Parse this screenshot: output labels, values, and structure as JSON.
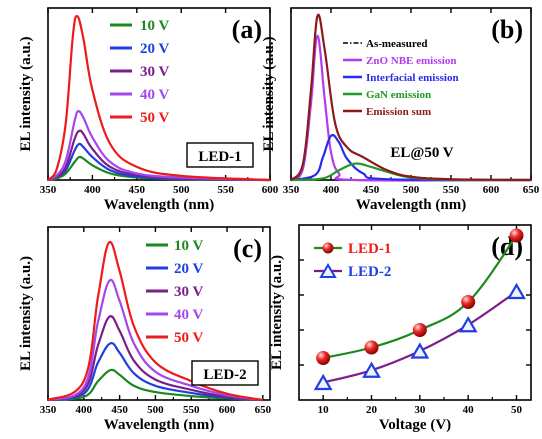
{
  "colors": {
    "green": "#1a8a1a",
    "blue": "#1f3fe0",
    "purple": "#7a1f8a",
    "violet": "#a347ee",
    "red": "#ee1b1b",
    "dashdot": "#000000",
    "znoNbe": "#b23bef",
    "interfacial": "#2a2aee",
    "gan": "#229922",
    "sum": "#8b1a1a"
  },
  "chart_data": [
    {
      "id": "a",
      "type": "line",
      "panel_label": "(a)",
      "xlabel": "Wavelength (nm)",
      "ylabel": "EL intensity (a.u.)",
      "xlim": [
        350,
        600
      ],
      "ylim": [
        0,
        1.05
      ],
      "xticks": [
        350,
        400,
        450,
        500,
        550,
        600
      ],
      "box_label": "LED-1",
      "legend_placement": "top-right",
      "series": [
        {
          "name": "10 V",
          "color": "green",
          "peak": 385,
          "amp": 0.14,
          "values": [
            [
              350,
              0.0
            ],
            [
              360,
              0.01
            ],
            [
              370,
              0.04
            ],
            [
              380,
              0.11
            ],
            [
              385,
              0.14
            ],
            [
              390,
              0.13
            ],
            [
              400,
              0.09
            ],
            [
              420,
              0.04
            ],
            [
              450,
              0.015
            ],
            [
              500,
              0.005
            ],
            [
              600,
              0.0
            ]
          ]
        },
        {
          "name": "20 V",
          "color": "blue",
          "peak": 385,
          "amp": 0.22,
          "values": [
            [
              350,
              0.0
            ],
            [
              360,
              0.02
            ],
            [
              370,
              0.06
            ],
            [
              380,
              0.18
            ],
            [
              385,
              0.22
            ],
            [
              390,
              0.2
            ],
            [
              400,
              0.14
            ],
            [
              420,
              0.06
            ],
            [
              450,
              0.02
            ],
            [
              500,
              0.007
            ],
            [
              600,
              0.0
            ]
          ]
        },
        {
          "name": "30 V",
          "color": "purple",
          "peak": 385,
          "amp": 0.3,
          "values": [
            [
              350,
              0.0
            ],
            [
              360,
              0.02
            ],
            [
              370,
              0.08
            ],
            [
              380,
              0.25
            ],
            [
              385,
              0.3
            ],
            [
              390,
              0.28
            ],
            [
              400,
              0.19
            ],
            [
              420,
              0.08
            ],
            [
              450,
              0.03
            ],
            [
              500,
              0.01
            ],
            [
              600,
              0.0
            ]
          ]
        },
        {
          "name": "40 V",
          "color": "violet",
          "peak": 384,
          "amp": 0.42,
          "values": [
            [
              350,
              0.0
            ],
            [
              360,
              0.03
            ],
            [
              370,
              0.12
            ],
            [
              380,
              0.36
            ],
            [
              384,
              0.42
            ],
            [
              390,
              0.38
            ],
            [
              400,
              0.26
            ],
            [
              420,
              0.11
            ],
            [
              450,
              0.04
            ],
            [
              500,
              0.015
            ],
            [
              600,
              0.0
            ]
          ]
        },
        {
          "name": "50 V",
          "color": "red",
          "peak": 383,
          "amp": 1.0,
          "values": [
            [
              350,
              0.0
            ],
            [
              360,
              0.07
            ],
            [
              370,
              0.35
            ],
            [
              378,
              0.88
            ],
            [
              383,
              1.0
            ],
            [
              390,
              0.86
            ],
            [
              400,
              0.55
            ],
            [
              420,
              0.22
            ],
            [
              450,
              0.08
            ],
            [
              500,
              0.025
            ],
            [
              600,
              0.0
            ]
          ]
        }
      ]
    },
    {
      "id": "b",
      "type": "line",
      "panel_label": "(b)",
      "xlabel": "Wavelength (nm)",
      "ylabel": "EL intensity (a.u.)",
      "xlim": [
        350,
        650
      ],
      "ylim": [
        0,
        1.05
      ],
      "xticks": [
        350,
        400,
        450,
        500,
        550,
        600,
        650
      ],
      "annotation": "EL@50 V",
      "legend_placement": "top-right",
      "series": [
        {
          "name": "As-measured",
          "color": "dashdot",
          "values": [
            [
              350,
              0.0
            ],
            [
              365,
              0.1
            ],
            [
              375,
              0.55
            ],
            [
              383,
              1.0
            ],
            [
              392,
              0.8
            ],
            [
              405,
              0.35
            ],
            [
              420,
              0.2
            ],
            [
              440,
              0.14
            ],
            [
              470,
              0.06
            ],
            [
              500,
              0.02
            ],
            [
              550,
              0.005
            ],
            [
              650,
              0.0
            ]
          ]
        },
        {
          "name": "ZnO NBE emission",
          "color": "znoNbe",
          "values": [
            [
              350,
              0.0
            ],
            [
              365,
              0.07
            ],
            [
              375,
              0.47
            ],
            [
              383,
              0.88
            ],
            [
              392,
              0.5
            ],
            [
              400,
              0.17
            ],
            [
              410,
              0.04
            ],
            [
              430,
              0.0
            ],
            [
              650,
              0.0
            ]
          ]
        },
        {
          "name": "Interfacial emission",
          "color": "interfacial",
          "values": [
            [
              350,
              0.0
            ],
            [
              380,
              0.03
            ],
            [
              390,
              0.14
            ],
            [
              400,
              0.27
            ],
            [
              410,
              0.23
            ],
            [
              420,
              0.13
            ],
            [
              440,
              0.04
            ],
            [
              470,
              0.005
            ],
            [
              650,
              0.0
            ]
          ]
        },
        {
          "name": "GaN emission",
          "color": "gan",
          "values": [
            [
              350,
              0.0
            ],
            [
              390,
              0.01
            ],
            [
              410,
              0.06
            ],
            [
              430,
              0.1
            ],
            [
              450,
              0.08
            ],
            [
              470,
              0.05
            ],
            [
              500,
              0.015
            ],
            [
              550,
              0.002
            ],
            [
              650,
              0.0
            ]
          ]
        },
        {
          "name": "Emission sum",
          "color": "sum",
          "values": [
            [
              350,
              0.0
            ],
            [
              365,
              0.1
            ],
            [
              375,
              0.55
            ],
            [
              383,
              1.0
            ],
            [
              392,
              0.8
            ],
            [
              405,
              0.35
            ],
            [
              420,
              0.2
            ],
            [
              440,
              0.14
            ],
            [
              470,
              0.06
            ],
            [
              500,
              0.02
            ],
            [
              550,
              0.005
            ],
            [
              650,
              0.0
            ]
          ]
        }
      ]
    },
    {
      "id": "c",
      "type": "line",
      "panel_label": "(c)",
      "xlabel": "Wavelength (nm)",
      "ylabel": "EL intensity (a.u.)",
      "xlim": [
        350,
        660
      ],
      "ylim": [
        0,
        1.1
      ],
      "xticks": [
        350,
        400,
        450,
        500,
        550,
        600,
        650
      ],
      "box_label": "LED-2",
      "legend_placement": "top-right",
      "series": [
        {
          "name": "10 V",
          "color": "green",
          "values": [
            [
              350,
              0.0
            ],
            [
              400,
              0.02
            ],
            [
              420,
              0.12
            ],
            [
              437,
              0.19
            ],
            [
              450,
              0.16
            ],
            [
              470,
              0.09
            ],
            [
              500,
              0.05
            ],
            [
              550,
              0.025
            ],
            [
              600,
              0.01
            ],
            [
              650,
              0.0
            ]
          ]
        },
        {
          "name": "20 V",
          "color": "blue",
          "values": [
            [
              350,
              0.0
            ],
            [
              400,
              0.04
            ],
            [
              420,
              0.24
            ],
            [
              437,
              0.36
            ],
            [
              450,
              0.3
            ],
            [
              470,
              0.17
            ],
            [
              500,
              0.09
            ],
            [
              550,
              0.045
            ],
            [
              600,
              0.015
            ],
            [
              650,
              0.0
            ]
          ]
        },
        {
          "name": "30 V",
          "color": "purple",
          "values": [
            [
              350,
              0.0
            ],
            [
              400,
              0.06
            ],
            [
              420,
              0.35
            ],
            [
              436,
              0.53
            ],
            [
              450,
              0.44
            ],
            [
              470,
              0.25
            ],
            [
              500,
              0.13
            ],
            [
              550,
              0.065
            ],
            [
              600,
              0.02
            ],
            [
              650,
              0.0
            ]
          ]
        },
        {
          "name": "40 V",
          "color": "violet",
          "values": [
            [
              350,
              0.0
            ],
            [
              400,
              0.08
            ],
            [
              420,
              0.5
            ],
            [
              436,
              0.76
            ],
            [
              450,
              0.63
            ],
            [
              470,
              0.36
            ],
            [
              500,
              0.18
            ],
            [
              550,
              0.09
            ],
            [
              600,
              0.03
            ],
            [
              650,
              0.0
            ]
          ]
        },
        {
          "name": "50 V",
          "color": "red",
          "values": [
            [
              350,
              0.0
            ],
            [
              400,
              0.12
            ],
            [
              420,
              0.66
            ],
            [
              435,
              1.0
            ],
            [
              450,
              0.82
            ],
            [
              470,
              0.47
            ],
            [
              500,
              0.24
            ],
            [
              550,
              0.12
            ],
            [
              600,
              0.04
            ],
            [
              650,
              0.0
            ]
          ]
        }
      ]
    },
    {
      "id": "d",
      "type": "line",
      "panel_label": "(d)",
      "xlabel": "Voltage (V)",
      "ylabel": "EL intensity (a.u.)",
      "xlim": [
        5,
        53
      ],
      "ylim": [
        0,
        1.0
      ],
      "xticks": [
        10,
        20,
        30,
        40,
        50
      ],
      "legend_placement": "top-left",
      "series": [
        {
          "name": "LED-1",
          "color": "red",
          "line_color": "green",
          "marker": "sphere",
          "x": [
            10,
            20,
            30,
            40,
            50
          ],
          "y": [
            0.24,
            0.3,
            0.4,
            0.56,
            0.94
          ]
        },
        {
          "name": "LED-2",
          "color": "blue",
          "line_color": "purple",
          "marker": "triangle",
          "x": [
            10,
            20,
            30,
            40,
            50
          ],
          "y": [
            0.1,
            0.17,
            0.28,
            0.43,
            0.62
          ]
        }
      ]
    }
  ]
}
